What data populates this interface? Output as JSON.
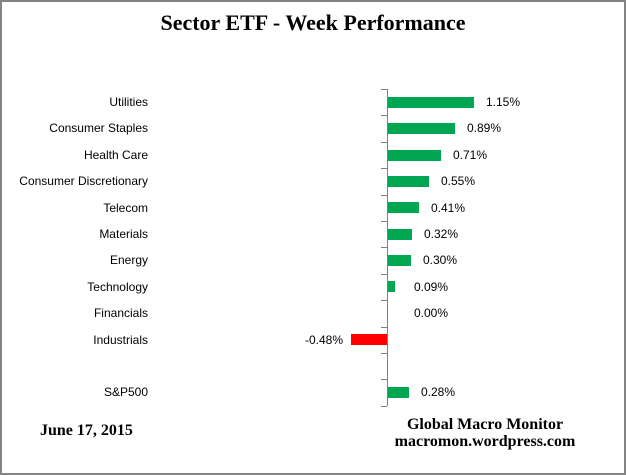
{
  "frame": {
    "border_color": "#848484",
    "background": "#FFFFFF"
  },
  "title": "Sector ETF - Week Performance",
  "footer": {
    "date": "June 17, 2015",
    "brand_line1": "Global Macro Monitor",
    "brand_line2": "macromon.wordpress.com"
  },
  "chart_data": {
    "type": "bar",
    "orientation": "horizontal",
    "title": "Sector ETF - Week Performance",
    "unit": "%",
    "value_labels": "outside-end",
    "gridlines": false,
    "value_axis_shown": false,
    "xlim": [
      -0.6,
      1.3
    ],
    "rows": [
      {
        "category": "Utilities",
        "value": 1.15,
        "label": "1.15%"
      },
      {
        "category": "Consumer Staples",
        "value": 0.89,
        "label": "0.89%"
      },
      {
        "category": "Health Care",
        "value": 0.71,
        "label": "0.71%"
      },
      {
        "category": "Consumer Discretionary",
        "value": 0.55,
        "label": "0.55%"
      },
      {
        "category": "Telecom",
        "value": 0.41,
        "label": "0.41%"
      },
      {
        "category": "Materials",
        "value": 0.32,
        "label": "0.32%"
      },
      {
        "category": "Energy",
        "value": 0.3,
        "label": "0.30%"
      },
      {
        "category": "Technology",
        "value": 0.09,
        "label": "0.09%"
      },
      {
        "category": "Financials",
        "value": 0.0,
        "label": "0.00%"
      },
      {
        "category": "Industrials",
        "value": -0.48,
        "label": "-0.48%"
      },
      {
        "category": "",
        "value": null,
        "label": ""
      },
      {
        "category": "S&P500",
        "value": 0.28,
        "label": "0.28%"
      }
    ],
    "colors": {
      "positive": "#00A651",
      "negative": "#FF0000",
      "axis": "#808080",
      "text": "#000000"
    }
  }
}
